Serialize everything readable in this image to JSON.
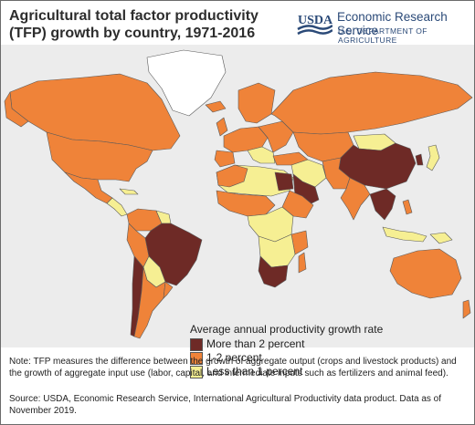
{
  "header": {
    "title": "Agricultural total factor productivity (TFP) growth by country, 1971-2016",
    "usda_logo_text": "USDA",
    "agency": "Economic Research Service",
    "department": "U.S. DEPARTMENT OF AGRICULTURE"
  },
  "legend": {
    "title": "Average annual productivity growth rate",
    "items": [
      {
        "label": "More than 2 percent",
        "color": "#6e2a26"
      },
      {
        "label": "1-2 percent",
        "color": "#ef8339"
      },
      {
        "label": "Less than 1 percent",
        "color": "#f6ef93"
      }
    ]
  },
  "colors": {
    "background": "#ececec",
    "no_data": "#ffffff",
    "border": "#5a5a5a",
    "brand": "#2b4a78"
  },
  "footer": {
    "note": "Note: TFP measures the difference between the growth of aggregate output (crops and livestock products) and the growth of aggregate input use (labor, capital, and intermediate inputs such as fertilizers and animal feed).",
    "source": "Source: USDA, Economic Research Service, International Agricultural Productivity data product. Data as of November 2019."
  }
}
